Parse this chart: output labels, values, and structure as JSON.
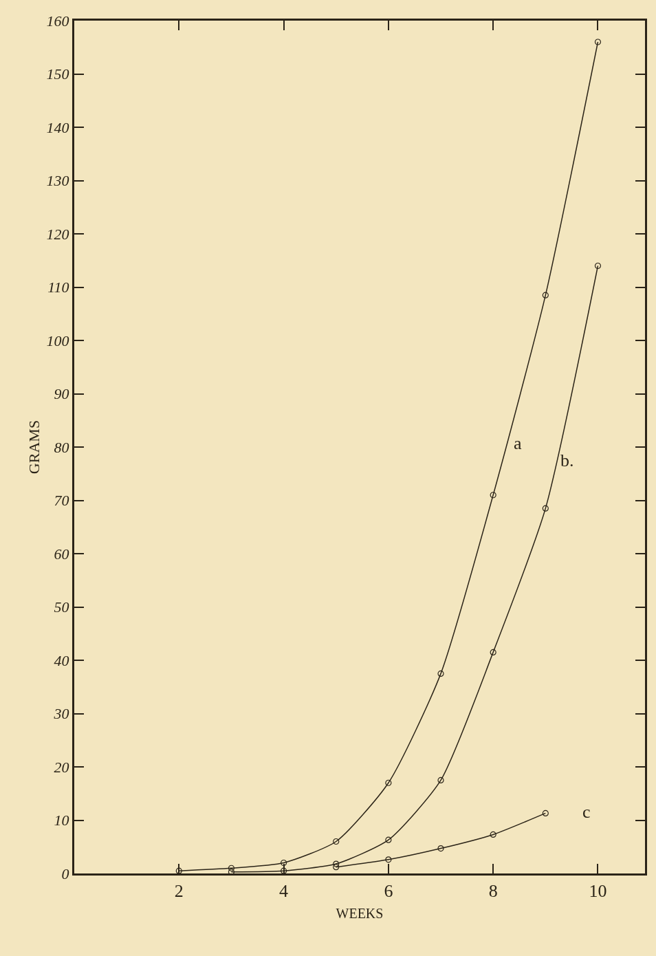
{
  "chart_data": {
    "type": "line",
    "xlabel": "WEEKS",
    "ylabel": "GRAMS",
    "series": [
      {
        "color": "#2b2418",
        "x": [
          2,
          3,
          4,
          5,
          6,
          7,
          8,
          9,
          10
        ],
        "values": [
          0.5,
          1,
          2,
          6,
          17,
          37.5,
          71,
          108.5,
          156
        ]
      },
      {
        "color": "#2b2418",
        "x": [
          3,
          4,
          5,
          6,
          7,
          8,
          9,
          10
        ],
        "values": [
          0.3,
          0.5,
          1.8,
          6.3,
          17.5,
          41.5,
          68.5,
          114
        ]
      },
      {
        "color": "#2b2418",
        "x": [
          5,
          6,
          7,
          8,
          9
        ],
        "values": [
          1.2,
          2.6,
          4.7,
          7.3,
          11.3
        ]
      }
    ],
    "annotations": [
      "a",
      "b.",
      "c"
    ],
    "xlim": [
      0,
      10.9
    ],
    "xticks": [
      2,
      4,
      6,
      8,
      10
    ],
    "ylim": [
      0,
      160
    ],
    "yticks": [
      0,
      10,
      20,
      30,
      40,
      50,
      60,
      70,
      80,
      90,
      100,
      110,
      120,
      130,
      140,
      150,
      160
    ],
    "grid": false,
    "marker": "circle",
    "line_style": "solid"
  }
}
